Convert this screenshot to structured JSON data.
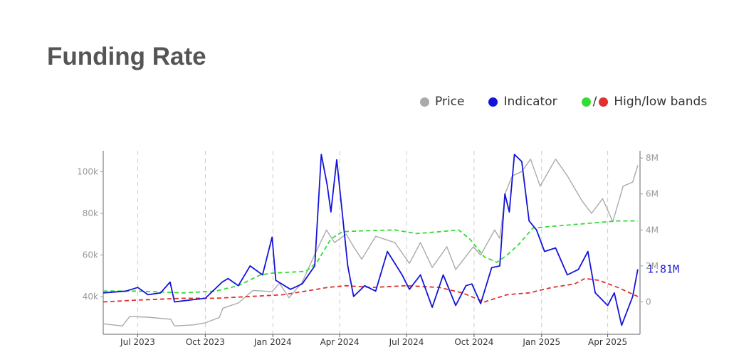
{
  "title": "Funding Rate",
  "legend": {
    "price": "Price",
    "indicator": "Indicator",
    "slash": "/",
    "bands": "High/low bands"
  },
  "colors": {
    "price": "#aaaaaa",
    "indicator": "#1414d9",
    "high_band": "#33dd33",
    "low_band": "#e03030",
    "grid": "#cccccc"
  },
  "chart_data": {
    "type": "line",
    "title": "Funding Rate",
    "x_range": [
      "2023-05-15",
      "2025-05-15"
    ],
    "x_ticks": [
      {
        "date": "2023-07-01",
        "label": "Jul 2023"
      },
      {
        "date": "2023-10-01",
        "label": "Oct 2023"
      },
      {
        "date": "2024-01-01",
        "label": "Jan 2024"
      },
      {
        "date": "2024-04-01",
        "label": "Apr 2024"
      },
      {
        "date": "2024-07-01",
        "label": "Jul 2024"
      },
      {
        "date": "2024-10-01",
        "label": "Oct 2024"
      },
      {
        "date": "2025-01-01",
        "label": "Jan 2025"
      },
      {
        "date": "2025-04-01",
        "label": "Apr 2025"
      }
    ],
    "grid": "vertical dashed lines at x ticks",
    "legend_position": "top-right",
    "left_axis": {
      "series": "Price",
      "range": [
        22000,
        110000
      ],
      "ticks": [
        {
          "value": 40000,
          "label": "40k"
        },
        {
          "value": 60000,
          "label": "60k"
        },
        {
          "value": 80000,
          "label": "80k"
        },
        {
          "value": 100000,
          "label": "100k"
        }
      ]
    },
    "right_axis": {
      "series": "Indicator and bands",
      "range": [
        -1800000,
        8400000
      ],
      "ticks": [
        {
          "value": 0,
          "label": "0"
        },
        {
          "value": 2000000,
          "label": "2M"
        },
        {
          "value": 4000000,
          "label": "4M"
        },
        {
          "value": 6000000,
          "label": "6M"
        },
        {
          "value": 8000000,
          "label": "8M"
        }
      ]
    },
    "last_value_label": "1.81M",
    "series": [
      {
        "name": "Price",
        "axis": "left",
        "points": [
          [
            "2023-05-15",
            27000
          ],
          [
            "2023-06-10",
            26000
          ],
          [
            "2023-06-20",
            30500
          ],
          [
            "2023-07-15",
            30200
          ],
          [
            "2023-08-15",
            29200
          ],
          [
            "2023-08-20",
            26000
          ],
          [
            "2023-09-15",
            26500
          ],
          [
            "2023-10-01",
            27500
          ],
          [
            "2023-10-20",
            30000
          ],
          [
            "2023-10-25",
            34500
          ],
          [
            "2023-11-15",
            37000
          ],
          [
            "2023-12-05",
            43000
          ],
          [
            "2023-12-31",
            42500
          ],
          [
            "2024-01-10",
            46500
          ],
          [
            "2024-01-23",
            39500
          ],
          [
            "2024-02-10",
            47000
          ],
          [
            "2024-02-28",
            61000
          ],
          [
            "2024-03-14",
            72000
          ],
          [
            "2024-03-25",
            66000
          ],
          [
            "2024-04-10",
            70000
          ],
          [
            "2024-04-20",
            64000
          ],
          [
            "2024-05-01",
            58000
          ],
          [
            "2024-05-20",
            69000
          ],
          [
            "2024-06-15",
            66000
          ],
          [
            "2024-07-05",
            56000
          ],
          [
            "2024-07-20",
            66000
          ],
          [
            "2024-08-05",
            54000
          ],
          [
            "2024-08-25",
            64000
          ],
          [
            "2024-09-06",
            53000
          ],
          [
            "2024-09-30",
            64000
          ],
          [
            "2024-10-10",
            60000
          ],
          [
            "2024-10-29",
            72000
          ],
          [
            "2024-11-05",
            68000
          ],
          [
            "2024-11-13",
            90000
          ],
          [
            "2024-11-22",
            98000
          ],
          [
            "2024-12-05",
            100000
          ],
          [
            "2024-12-17",
            106000
          ],
          [
            "2024-12-30",
            93000
          ],
          [
            "2025-01-20",
            106000
          ],
          [
            "2025-02-05",
            98000
          ],
          [
            "2025-02-25",
            86000
          ],
          [
            "2025-03-10",
            80000
          ],
          [
            "2025-03-25",
            87000
          ],
          [
            "2025-04-08",
            76000
          ],
          [
            "2025-04-22",
            93000
          ],
          [
            "2025-05-05",
            95000
          ],
          [
            "2025-05-12",
            103000
          ]
        ]
      },
      {
        "name": "Indicator",
        "axis": "right",
        "points": [
          [
            "2023-05-15",
            500000
          ],
          [
            "2023-06-15",
            600000
          ],
          [
            "2023-07-01",
            800000
          ],
          [
            "2023-07-15",
            400000
          ],
          [
            "2023-08-01",
            500000
          ],
          [
            "2023-08-14",
            1100000
          ],
          [
            "2023-08-20",
            0
          ],
          [
            "2023-09-10",
            100000
          ],
          [
            "2023-10-01",
            200000
          ],
          [
            "2023-10-24",
            1100000
          ],
          [
            "2023-11-01",
            1300000
          ],
          [
            "2023-11-15",
            900000
          ],
          [
            "2023-12-01",
            2000000
          ],
          [
            "2023-12-18",
            1500000
          ],
          [
            "2023-12-31",
            3600000
          ],
          [
            "2024-01-05",
            1200000
          ],
          [
            "2024-01-25",
            700000
          ],
          [
            "2024-02-10",
            1000000
          ],
          [
            "2024-02-27",
            2000000
          ],
          [
            "2024-03-07",
            8200000
          ],
          [
            "2024-03-15",
            6500000
          ],
          [
            "2024-03-20",
            5000000
          ],
          [
            "2024-03-28",
            7900000
          ],
          [
            "2024-04-12",
            2000000
          ],
          [
            "2024-04-20",
            300000
          ],
          [
            "2024-05-05",
            900000
          ],
          [
            "2024-05-20",
            600000
          ],
          [
            "2024-06-05",
            2800000
          ],
          [
            "2024-06-25",
            1500000
          ],
          [
            "2024-07-05",
            700000
          ],
          [
            "2024-07-20",
            1500000
          ],
          [
            "2024-08-05",
            -300000
          ],
          [
            "2024-08-20",
            1500000
          ],
          [
            "2024-09-06",
            -200000
          ],
          [
            "2024-09-20",
            900000
          ],
          [
            "2024-09-28",
            1000000
          ],
          [
            "2024-10-10",
            -100000
          ],
          [
            "2024-10-25",
            1900000
          ],
          [
            "2024-11-05",
            2000000
          ],
          [
            "2024-11-12",
            6000000
          ],
          [
            "2024-11-18",
            5000000
          ],
          [
            "2024-11-25",
            8200000
          ],
          [
            "2024-12-05",
            7800000
          ],
          [
            "2024-12-15",
            4500000
          ],
          [
            "2024-12-25",
            4000000
          ],
          [
            "2025-01-05",
            2800000
          ],
          [
            "2025-01-20",
            3000000
          ],
          [
            "2025-02-05",
            1500000
          ],
          [
            "2025-02-20",
            1800000
          ],
          [
            "2025-03-05",
            2800000
          ],
          [
            "2025-03-15",
            500000
          ],
          [
            "2025-04-01",
            -200000
          ],
          [
            "2025-04-10",
            500000
          ],
          [
            "2025-04-20",
            -1300000
          ],
          [
            "2025-05-05",
            300000
          ],
          [
            "2025-05-12",
            1810000
          ]
        ]
      },
      {
        "name": "High band",
        "axis": "right",
        "points": [
          [
            "2023-05-15",
            600000
          ],
          [
            "2023-07-01",
            600000
          ],
          [
            "2023-09-01",
            500000
          ],
          [
            "2023-10-15",
            600000
          ],
          [
            "2023-11-15",
            900000
          ],
          [
            "2023-12-15",
            1500000
          ],
          [
            "2024-01-01",
            1600000
          ],
          [
            "2024-02-15",
            1700000
          ],
          [
            "2024-03-01",
            2200000
          ],
          [
            "2024-03-20",
            3500000
          ],
          [
            "2024-04-05",
            3900000
          ],
          [
            "2024-05-01",
            3950000
          ],
          [
            "2024-06-15",
            4000000
          ],
          [
            "2024-07-15",
            3800000
          ],
          [
            "2024-08-15",
            3900000
          ],
          [
            "2024-09-10",
            4000000
          ],
          [
            "2024-09-25",
            3500000
          ],
          [
            "2024-10-15",
            2500000
          ],
          [
            "2024-11-01",
            2200000
          ],
          [
            "2024-11-15",
            2600000
          ],
          [
            "2024-12-01",
            3200000
          ],
          [
            "2024-12-20",
            4100000
          ],
          [
            "2025-01-15",
            4200000
          ],
          [
            "2025-02-15",
            4300000
          ],
          [
            "2025-03-15",
            4400000
          ],
          [
            "2025-04-15",
            4500000
          ],
          [
            "2025-05-12",
            4500000
          ]
        ]
      },
      {
        "name": "Low band",
        "axis": "right",
        "points": [
          [
            "2023-05-15",
            0
          ],
          [
            "2023-07-01",
            100000
          ],
          [
            "2023-09-01",
            200000
          ],
          [
            "2023-10-15",
            200000
          ],
          [
            "2023-12-01",
            300000
          ],
          [
            "2024-01-15",
            400000
          ],
          [
            "2024-02-15",
            600000
          ],
          [
            "2024-03-15",
            800000
          ],
          [
            "2024-04-10",
            900000
          ],
          [
            "2024-05-15",
            800000
          ],
          [
            "2024-07-01",
            900000
          ],
          [
            "2024-08-15",
            800000
          ],
          [
            "2024-09-15",
            500000
          ],
          [
            "2024-10-15",
            0
          ],
          [
            "2024-11-15",
            400000
          ],
          [
            "2024-12-15",
            500000
          ],
          [
            "2025-01-15",
            800000
          ],
          [
            "2025-02-15",
            1000000
          ],
          [
            "2025-03-01",
            1300000
          ],
          [
            "2025-03-20",
            1200000
          ],
          [
            "2025-04-15",
            800000
          ],
          [
            "2025-05-12",
            300000
          ]
        ]
      }
    ]
  }
}
